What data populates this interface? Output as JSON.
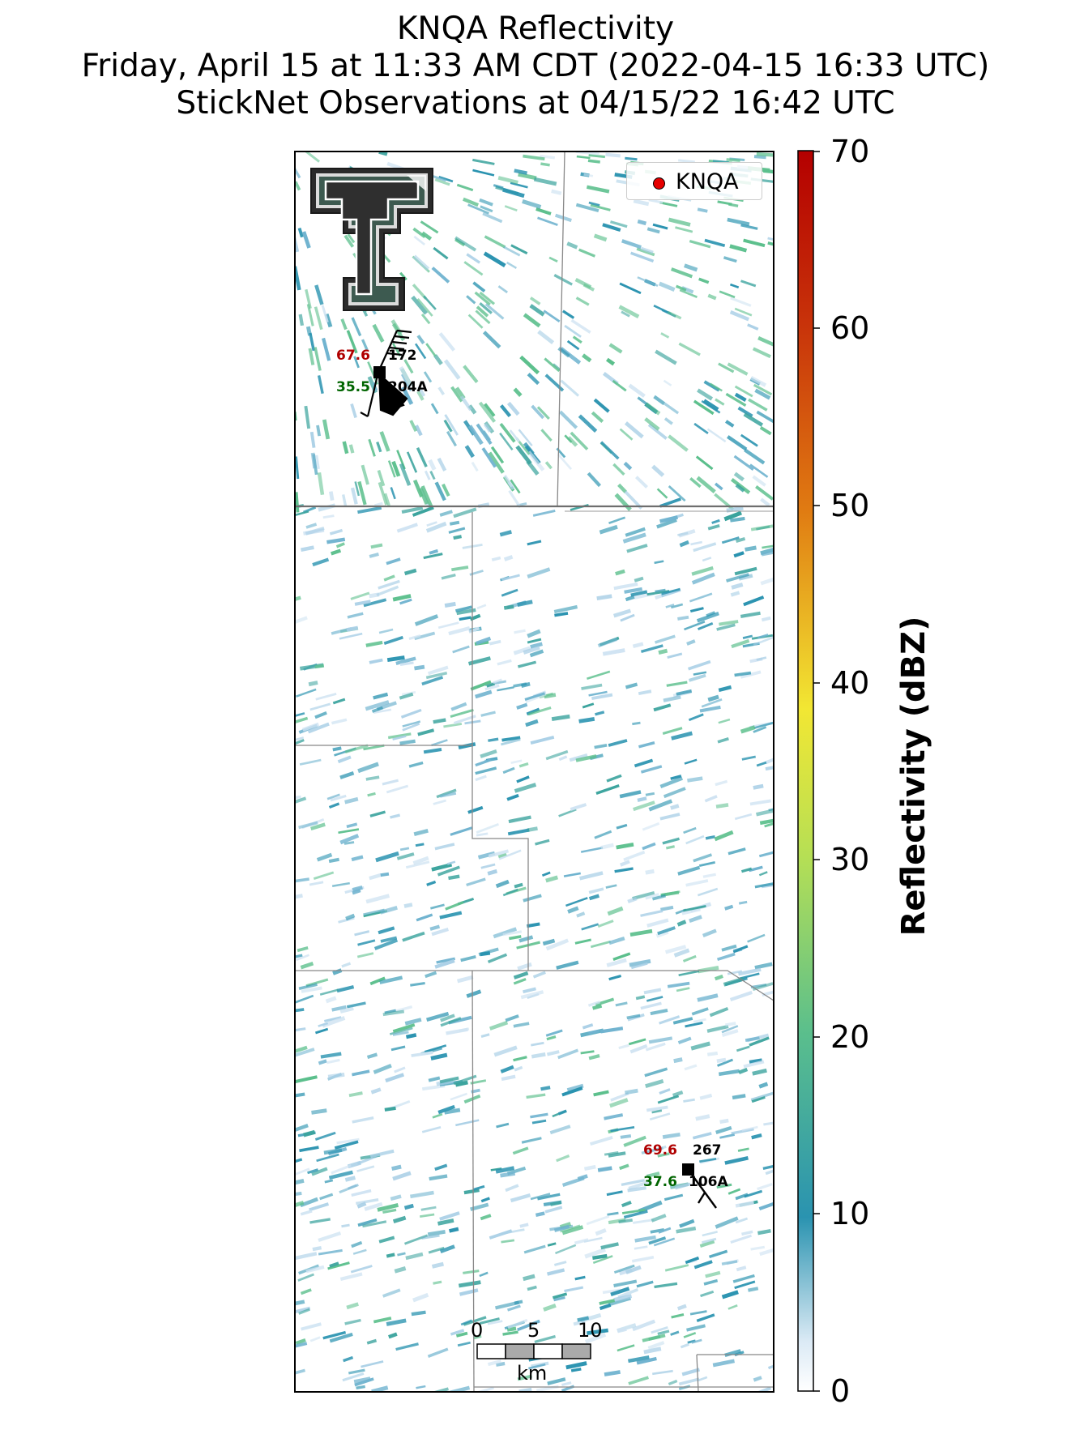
{
  "header": {
    "title": "KNQA Reflectivity",
    "subtitle": "Friday, April 15 at 11:33 AM CDT (2022-04-15 16:33 UTC)",
    "obs_line": "StickNet Observations at 04/15/22 16:42 UTC"
  },
  "legend": {
    "label": "KNQA",
    "marker_color": "#e60000"
  },
  "colorbar": {
    "label": "Reflectivity (dBZ)",
    "ticks": [
      "70",
      "60",
      "50",
      "40",
      "30",
      "20",
      "10",
      "0"
    ],
    "range": [
      0,
      70
    ],
    "colors": [
      "#ffffff",
      "#2a93b0",
      "#5bbf8c",
      "#f2e733",
      "#e07b12",
      "#b40000"
    ]
  },
  "stations": [
    {
      "id": "0204A",
      "temperature": "67.6",
      "dewpoint": "35.5",
      "wind_direction": "172",
      "id_label": "204A",
      "temp_color": "#b00000",
      "dew_color": "#006400"
    },
    {
      "id": "0106A",
      "temperature": "69.6",
      "dewpoint": "37.6",
      "wind_direction": "267",
      "id_label": "106A",
      "temp_color": "#b00000",
      "dew_color": "#006400"
    }
  ],
  "scalebar": {
    "ticks": [
      "0",
      "5",
      "10"
    ],
    "unit": "km"
  },
  "logo": {
    "name": "Texas Tech Double T",
    "icon": "double-t-logo-icon"
  }
}
